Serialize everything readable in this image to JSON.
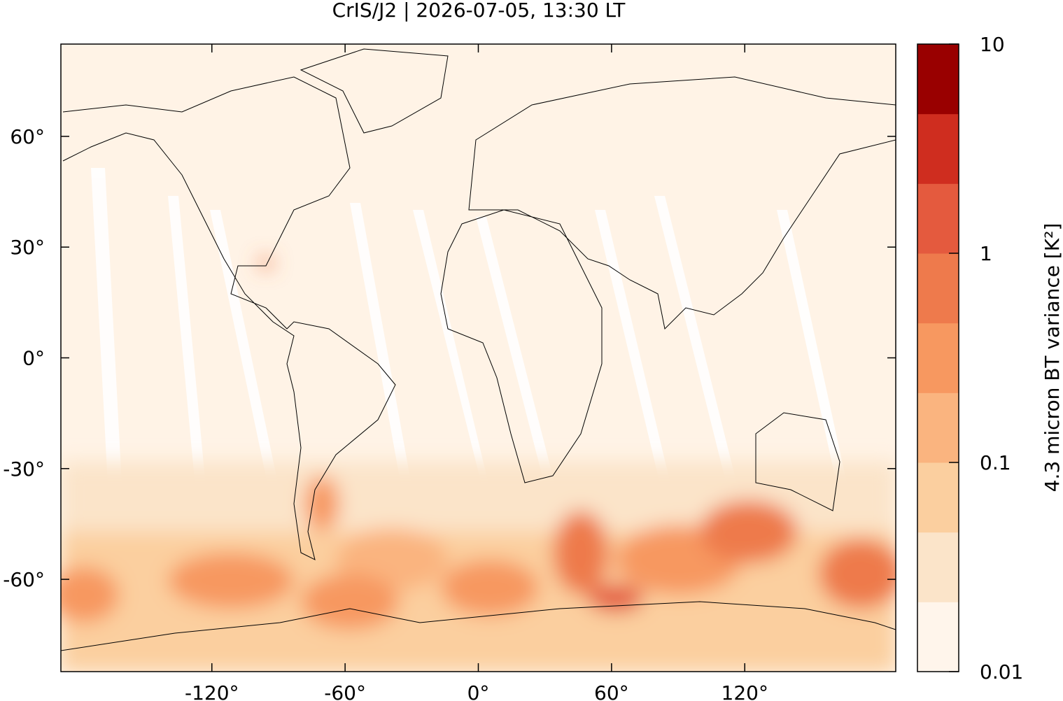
{
  "chart_data": {
    "type": "map",
    "title": "CrIS/J2 | 2026-07-05, 13:30 LT",
    "xlim": [
      -188,
      188
    ],
    "ylim": [
      -85,
      85
    ],
    "xticks": [
      {
        "value": -120,
        "label": "-120°"
      },
      {
        "value": -60,
        "label": "-60°"
      },
      {
        "value": 0,
        "label": "0°"
      },
      {
        "value": 60,
        "label": "60°"
      },
      {
        "value": 120,
        "label": "120°"
      }
    ],
    "yticks": [
      {
        "value": 60,
        "label": "60°"
      },
      {
        "value": 30,
        "label": "30°"
      },
      {
        "value": 0,
        "label": "0°"
      },
      {
        "value": -30,
        "label": "-30°"
      },
      {
        "value": -60,
        "label": "-60°"
      }
    ],
    "colorbar": {
      "label": "4.3 micron BT variance [K²]",
      "scale": "log",
      "lim": [
        0.01,
        10
      ],
      "ticks": [
        0.01,
        0.1,
        1,
        10
      ],
      "colors": [
        "#fff5eb",
        "#fbe4c9",
        "#fbcf9f",
        "#fab47f",
        "#f79860",
        "#ee7a4c",
        "#e45a3e",
        "#cf2d1f",
        "#990000"
      ]
    }
  }
}
